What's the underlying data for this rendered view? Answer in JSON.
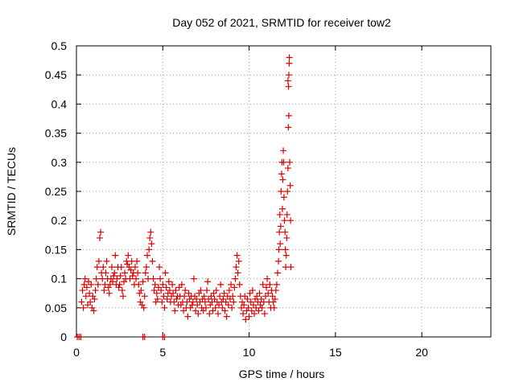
{
  "chart_data": {
    "type": "scatter",
    "title": "Day 052 of 2021, SRMTID for receiver tow2",
    "xlabel": "GPS time / hours",
    "ylabel": "SRMTID / TECUs",
    "xlim": [
      0,
      24
    ],
    "ylim": [
      0,
      0.5
    ],
    "xticks": [
      0,
      5,
      10,
      15,
      20
    ],
    "yticks": [
      0,
      0.05,
      0.1,
      0.15,
      0.2,
      0.25,
      0.3,
      0.35,
      0.4,
      0.45,
      0.5
    ],
    "ytick_labels": [
      "0",
      "0.05",
      "0.1",
      "0.15",
      "0.2",
      "0.25",
      "0.3",
      "0.35",
      "0.4",
      "0.45",
      "0.5"
    ],
    "grid": true,
    "marker": "+",
    "marker_color": "#dd0000",
    "series": [
      {
        "name": "SRMTID",
        "points": [
          [
            0.05,
            0.0
          ],
          [
            0.15,
            0.0
          ],
          [
            0.25,
            0.0
          ],
          [
            3.85,
            0.0
          ],
          [
            3.95,
            0.0
          ],
          [
            5.0,
            0.0
          ],
          [
            5.1,
            0.0
          ],
          [
            0.3,
            0.06
          ],
          [
            0.35,
            0.08
          ],
          [
            0.4,
            0.05
          ],
          [
            0.45,
            0.09
          ],
          [
            0.5,
            0.1
          ],
          [
            0.55,
            0.07
          ],
          [
            0.6,
            0.085
          ],
          [
            0.65,
            0.055
          ],
          [
            0.7,
            0.095
          ],
          [
            0.75,
            0.075
          ],
          [
            0.8,
            0.06
          ],
          [
            0.85,
            0.09
          ],
          [
            0.9,
            0.05
          ],
          [
            0.95,
            0.07
          ],
          [
            1.0,
            0.045
          ],
          [
            1.05,
            0.065
          ],
          [
            1.1,
            0.08
          ],
          [
            1.15,
            0.1
          ],
          [
            1.2,
            0.12
          ],
          [
            1.25,
            0.09
          ],
          [
            1.3,
            0.13
          ],
          [
            1.35,
            0.17
          ],
          [
            1.4,
            0.18
          ],
          [
            1.45,
            0.11
          ],
          [
            1.5,
            0.1
          ],
          [
            1.55,
            0.12
          ],
          [
            1.6,
            0.08
          ],
          [
            1.65,
            0.09
          ],
          [
            1.7,
            0.11
          ],
          [
            1.75,
            0.13
          ],
          [
            1.8,
            0.1
          ],
          [
            1.85,
            0.085
          ],
          [
            1.9,
            0.075
          ],
          [
            1.95,
            0.09
          ],
          [
            2.0,
            0.1
          ],
          [
            2.05,
            0.12
          ],
          [
            2.1,
            0.095
          ],
          [
            2.15,
            0.105
          ],
          [
            2.2,
            0.11
          ],
          [
            2.25,
            0.14
          ],
          [
            2.3,
            0.09
          ],
          [
            2.35,
            0.1
          ],
          [
            2.4,
            0.12
          ],
          [
            2.45,
            0.085
          ],
          [
            2.5,
            0.09
          ],
          [
            2.55,
            0.105
          ],
          [
            2.6,
            0.12
          ],
          [
            2.65,
            0.08
          ],
          [
            2.7,
            0.07
          ],
          [
            2.75,
            0.095
          ],
          [
            2.8,
            0.11
          ],
          [
            2.85,
            0.1
          ],
          [
            2.9,
            0.13
          ],
          [
            2.95,
            0.125
          ],
          [
            3.0,
            0.14
          ],
          [
            3.05,
            0.12
          ],
          [
            3.1,
            0.1
          ],
          [
            3.15,
            0.115
          ],
          [
            3.2,
            0.13
          ],
          [
            3.25,
            0.105
          ],
          [
            3.3,
            0.11
          ],
          [
            3.35,
            0.09
          ],
          [
            3.4,
            0.12
          ],
          [
            3.45,
            0.1
          ],
          [
            3.5,
            0.13
          ],
          [
            3.55,
            0.11
          ],
          [
            3.6,
            0.09
          ],
          [
            3.65,
            0.075
          ],
          [
            3.7,
            0.06
          ],
          [
            3.75,
            0.08
          ],
          [
            3.8,
            0.055
          ],
          [
            3.85,
            0.095
          ],
          [
            3.9,
            0.05
          ],
          [
            3.95,
            0.07
          ],
          [
            4.0,
            0.11
          ],
          [
            4.05,
            0.12
          ],
          [
            4.1,
            0.14
          ],
          [
            4.15,
            0.1
          ],
          [
            4.2,
            0.15
          ],
          [
            4.25,
            0.17
          ],
          [
            4.3,
            0.18
          ],
          [
            4.35,
            0.16
          ],
          [
            4.4,
            0.13
          ],
          [
            4.45,
            0.1
          ],
          [
            4.5,
            0.08
          ],
          [
            4.55,
            0.09
          ],
          [
            4.6,
            0.06
          ],
          [
            4.65,
            0.075
          ],
          [
            4.7,
            0.065
          ],
          [
            4.75,
            0.085
          ],
          [
            4.8,
            0.12
          ],
          [
            4.85,
            0.1
          ],
          [
            4.9,
            0.08
          ],
          [
            4.95,
            0.06
          ],
          [
            5.0,
            0.09
          ],
          [
            5.05,
            0.07
          ],
          [
            5.1,
            0.05
          ],
          [
            5.15,
            0.11
          ],
          [
            5.2,
            0.085
          ],
          [
            5.25,
            0.065
          ],
          [
            5.3,
            0.075
          ],
          [
            5.35,
            0.095
          ],
          [
            5.4,
            0.08
          ],
          [
            5.45,
            0.06
          ],
          [
            5.5,
            0.07
          ],
          [
            5.55,
            0.09
          ],
          [
            5.6,
            0.075
          ],
          [
            5.65,
            0.06
          ],
          [
            5.7,
            0.045
          ],
          [
            5.75,
            0.08
          ],
          [
            5.8,
            0.065
          ],
          [
            5.85,
            0.07
          ],
          [
            5.9,
            0.055
          ],
          [
            5.95,
            0.085
          ],
          [
            6.0,
            0.07
          ],
          [
            6.05,
            0.055
          ],
          [
            6.1,
            0.09
          ],
          [
            6.15,
            0.06
          ],
          [
            6.2,
            0.045
          ],
          [
            6.25,
            0.07
          ],
          [
            6.3,
            0.08
          ],
          [
            6.35,
            0.05
          ],
          [
            6.4,
            0.06
          ],
          [
            6.45,
            0.035
          ],
          [
            6.5,
            0.075
          ],
          [
            6.55,
            0.065
          ],
          [
            6.6,
            0.05
          ],
          [
            6.65,
            0.07
          ],
          [
            6.7,
            0.055
          ],
          [
            6.75,
            0.06
          ],
          [
            6.8,
            0.1
          ],
          [
            6.85,
            0.07
          ],
          [
            6.9,
            0.045
          ],
          [
            6.95,
            0.065
          ],
          [
            7.0,
            0.055
          ],
          [
            7.05,
            0.04
          ],
          [
            7.1,
            0.075
          ],
          [
            7.15,
            0.06
          ],
          [
            7.2,
            0.08
          ],
          [
            7.25,
            0.05
          ],
          [
            7.3,
            0.065
          ],
          [
            7.35,
            0.045
          ],
          [
            7.4,
            0.07
          ],
          [
            7.45,
            0.06
          ],
          [
            7.5,
            0.05
          ],
          [
            7.55,
            0.08
          ],
          [
            7.6,
            0.095
          ],
          [
            7.65,
            0.065
          ],
          [
            7.7,
            0.04
          ],
          [
            7.75,
            0.055
          ],
          [
            7.8,
            0.07
          ],
          [
            7.85,
            0.06
          ],
          [
            7.9,
            0.045
          ],
          [
            7.95,
            0.075
          ],
          [
            8.0,
            0.065
          ],
          [
            8.05,
            0.05
          ],
          [
            8.1,
            0.08
          ],
          [
            8.15,
            0.06
          ],
          [
            8.2,
            0.04
          ],
          [
            8.25,
            0.055
          ],
          [
            8.3,
            0.07
          ],
          [
            8.35,
            0.09
          ],
          [
            8.4,
            0.06
          ],
          [
            8.45,
            0.05
          ],
          [
            8.5,
            0.065
          ],
          [
            8.55,
            0.075
          ],
          [
            8.6,
            0.045
          ],
          [
            8.65,
            0.06
          ],
          [
            8.7,
            0.035
          ],
          [
            8.75,
            0.07
          ],
          [
            8.8,
            0.055
          ],
          [
            8.85,
            0.08
          ],
          [
            8.9,
            0.065
          ],
          [
            8.95,
            0.09
          ],
          [
            9.0,
            0.05
          ],
          [
            9.05,
            0.07
          ],
          [
            9.1,
            0.06
          ],
          [
            9.15,
            0.085
          ],
          [
            9.2,
            0.1
          ],
          [
            9.25,
            0.12
          ],
          [
            9.3,
            0.14
          ],
          [
            9.35,
            0.11
          ],
          [
            9.4,
            0.13
          ],
          [
            9.45,
            0.09
          ],
          [
            9.5,
            0.07
          ],
          [
            9.55,
            0.05
          ],
          [
            9.6,
            0.06
          ],
          [
            9.65,
            0.04
          ],
          [
            9.7,
            0.055
          ],
          [
            9.75,
            0.07
          ],
          [
            9.8,
            0.03
          ],
          [
            9.85,
            0.045
          ],
          [
            9.9,
            0.065
          ],
          [
            9.95,
            0.05
          ],
          [
            10.0,
            0.035
          ],
          [
            10.05,
            0.075
          ],
          [
            10.1,
            0.06
          ],
          [
            10.15,
            0.045
          ],
          [
            10.2,
            0.08
          ],
          [
            10.25,
            0.055
          ],
          [
            10.3,
            0.04
          ],
          [
            10.35,
            0.065
          ],
          [
            10.4,
            0.05
          ],
          [
            10.45,
            0.07
          ],
          [
            10.5,
            0.06
          ],
          [
            10.55,
            0.045
          ],
          [
            10.6,
            0.075
          ],
          [
            10.65,
            0.055
          ],
          [
            10.7,
            0.065
          ],
          [
            10.75,
            0.05
          ],
          [
            10.8,
            0.09
          ],
          [
            10.85,
            0.06
          ],
          [
            10.9,
            0.04
          ],
          [
            10.95,
            0.07
          ],
          [
            11.0,
            0.085
          ],
          [
            11.05,
            0.1
          ],
          [
            11.1,
            0.075
          ],
          [
            11.15,
            0.06
          ],
          [
            11.2,
            0.09
          ],
          [
            11.25,
            0.05
          ],
          [
            11.3,
            0.08
          ],
          [
            11.35,
            0.07
          ],
          [
            11.4,
            0.06
          ],
          [
            11.45,
            0.05
          ],
          [
            11.5,
            0.065
          ],
          [
            11.55,
            0.08
          ],
          [
            11.6,
            0.09
          ],
          [
            11.65,
            0.11
          ],
          [
            11.7,
            0.13
          ],
          [
            11.72,
            0.15
          ],
          [
            11.75,
            0.18
          ],
          [
            11.78,
            0.21
          ],
          [
            11.8,
            0.16
          ],
          [
            11.83,
            0.19
          ],
          [
            11.85,
            0.25
          ],
          [
            11.88,
            0.28
          ],
          [
            11.9,
            0.3
          ],
          [
            11.93,
            0.22
          ],
          [
            11.95,
            0.27
          ],
          [
            11.98,
            0.32
          ],
          [
            12.0,
            0.3
          ],
          [
            12.02,
            0.24
          ],
          [
            12.05,
            0.2
          ],
          [
            12.08,
            0.18
          ],
          [
            12.1,
            0.15
          ],
          [
            12.12,
            0.12
          ],
          [
            12.15,
            0.14
          ],
          [
            12.18,
            0.17
          ],
          [
            12.2,
            0.21
          ],
          [
            12.22,
            0.25
          ],
          [
            12.25,
            0.29
          ],
          [
            12.27,
            0.36
          ],
          [
            12.3,
            0.38
          ],
          [
            12.28,
            0.43
          ],
          [
            12.3,
            0.45
          ],
          [
            12.32,
            0.47
          ],
          [
            12.33,
            0.48
          ],
          [
            12.25,
            0.44
          ],
          [
            12.35,
            0.3
          ],
          [
            12.38,
            0.26
          ],
          [
            12.4,
            0.2
          ],
          [
            12.42,
            0.12
          ]
        ]
      }
    ]
  }
}
